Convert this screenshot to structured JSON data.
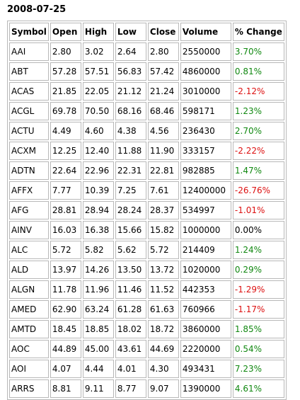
{
  "title": "2008-07-25",
  "columns": [
    "Symbol",
    "Open",
    "High",
    "Low",
    "Close",
    "Volume",
    "% Change"
  ],
  "rows": [
    [
      "AAI",
      "2.80",
      "3.02",
      "2.64",
      "2.80",
      "2550000",
      "3.70%"
    ],
    [
      "ABT",
      "57.28",
      "57.51",
      "56.83",
      "57.42",
      "4860000",
      "0.81%"
    ],
    [
      "ACAS",
      "21.85",
      "22.05",
      "21.12",
      "21.24",
      "3010000",
      "-2.12%"
    ],
    [
      "ACGL",
      "69.78",
      "70.50",
      "68.16",
      "68.46",
      "598171",
      "1.23%"
    ],
    [
      "ACTU",
      "4.49",
      "4.60",
      "4.38",
      "4.56",
      "236430",
      "2.70%"
    ],
    [
      "ACXM",
      "12.25",
      "12.40",
      "11.88",
      "11.90",
      "333157",
      "-2.22%"
    ],
    [
      "ADTN",
      "22.64",
      "22.96",
      "22.31",
      "22.81",
      "982885",
      "1.47%"
    ],
    [
      "AFFX",
      "7.77",
      "10.39",
      "7.25",
      "7.61",
      "12400000",
      "-26.76%"
    ],
    [
      "AFG",
      "28.81",
      "28.94",
      "28.24",
      "28.37",
      "534997",
      "-1.01%"
    ],
    [
      "AINV",
      "16.03",
      "16.38",
      "15.66",
      "15.82",
      "1000000",
      "0.00%"
    ],
    [
      "ALC",
      "5.72",
      "5.82",
      "5.62",
      "5.72",
      "214409",
      "1.24%"
    ],
    [
      "ALD",
      "13.97",
      "14.26",
      "13.50",
      "13.72",
      "1020000",
      "0.29%"
    ],
    [
      "ALGN",
      "11.78",
      "11.96",
      "11.46",
      "11.52",
      "442353",
      "-1.29%"
    ],
    [
      "AMED",
      "62.90",
      "63.24",
      "61.28",
      "61.63",
      "760966",
      "-1.17%"
    ],
    [
      "AMTD",
      "18.45",
      "18.85",
      "18.02",
      "18.72",
      "3860000",
      "1.85%"
    ],
    [
      "AOC",
      "44.89",
      "45.00",
      "43.61",
      "44.69",
      "2220000",
      "0.54%"
    ],
    [
      "AOI",
      "4.07",
      "4.44",
      "4.01",
      "4.30",
      "493431",
      "7.23%"
    ],
    [
      "ARRS",
      "8.81",
      "9.11",
      "8.77",
      "9.07",
      "1390000",
      "4.61%"
    ]
  ],
  "colors": {
    "positive": "#118811",
    "negative": "#dd1111",
    "neutral": "#000000",
    "border": "#b8b8b8"
  }
}
